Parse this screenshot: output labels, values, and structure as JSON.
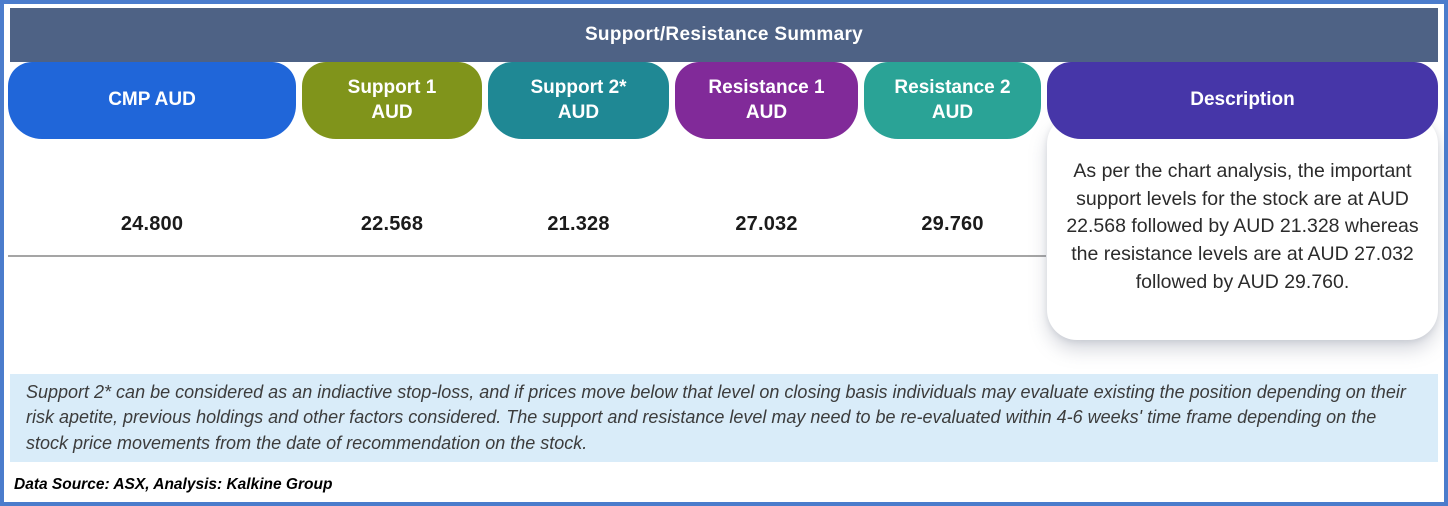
{
  "title": "Support/Resistance Summary",
  "columns": [
    {
      "label": "CMP AUD",
      "value": "24.800",
      "color": "#2066d9"
    },
    {
      "label": "Support 1\nAUD",
      "value": "22.568",
      "color": "#80941b"
    },
    {
      "label": "Support 2*\nAUD",
      "value": "21.328",
      "color": "#1f8894"
    },
    {
      "label": "Resistance 1\nAUD",
      "value": "27.032",
      "color": "#812a99"
    },
    {
      "label": "Resistance 2\nAUD",
      "value": "29.760",
      "color": "#2aa396"
    }
  ],
  "description": {
    "label": "Description",
    "color": "#4636a8",
    "text": "As per the chart analysis, the important support levels for the stock are at AUD 22.568 followed by AUD 21.328 whereas the resistance levels are at AUD 27.032 followed by AUD 29.760."
  },
  "note": "Support 2* can be considered as an indiactive stop-loss, and if prices move below that level on closing basis individuals may evaluate existing the position depending on their risk apetite, previous holdings and other factors considered. The support and resistance level may need to be re-evaluated within 4-6 weeks' time frame depending on the stock price movements from  the date of recommendation on the stock.",
  "source": "Data Source: ASX, Analysis: Kalkine Group",
  "colors": {
    "border": "#4b7ccc",
    "title_bar": "#4e6285",
    "note_bg": "#d9ecf9",
    "value_text": "#1b1b1b"
  },
  "chart_data": {
    "type": "table",
    "title": "Support/Resistance Summary",
    "columns": [
      "CMP AUD",
      "Support 1 AUD",
      "Support 2* AUD",
      "Resistance 1 AUD",
      "Resistance 2 AUD",
      "Description"
    ],
    "rows": [
      [
        "24.800",
        "22.568",
        "21.328",
        "27.032",
        "29.760",
        "As per the chart analysis, the important support levels for the stock are at AUD 22.568 followed by AUD 21.328 whereas the resistance levels are at AUD 27.032 followed by AUD 29.760."
      ]
    ],
    "footnote": "Support 2* can be considered as an indiactive stop-loss; levels may need re-evaluation within 4-6 weeks.",
    "source": "Data Source: ASX, Analysis: Kalkine Group"
  }
}
